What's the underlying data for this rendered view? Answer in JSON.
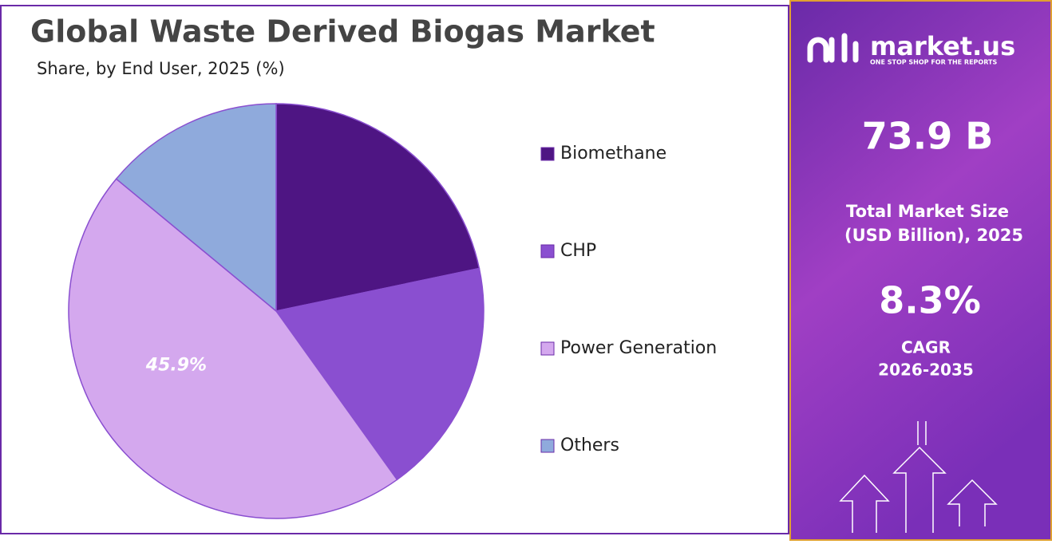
{
  "chart_data": {
    "type": "pie",
    "title": "Global Waste Derived Biogas Market",
    "subtitle": "Share, by End User, 2025 (%)",
    "categories": [
      "Biomethane",
      "CHP",
      "Power Generation",
      "Others"
    ],
    "values": [
      21.7,
      18.4,
      45.9,
      14.0
    ],
    "value_labels": [
      null,
      null,
      "45.9%",
      null
    ],
    "colors": [
      "#4e1583",
      "#8a4fd0",
      "#d4a8ee",
      "#8faadc"
    ],
    "legend": "right"
  },
  "sidebar": {
    "brand": "market.us",
    "tagline": "ONE STOP SHOP FOR THE REPORTS",
    "market_size": "73.9 B",
    "market_size_label_1": "Total Market Size",
    "market_size_label_2": "(USD Billion), 2025",
    "cagr": "8.3%",
    "cagr_label": "CAGR",
    "cagr_period": "2026-2035"
  }
}
